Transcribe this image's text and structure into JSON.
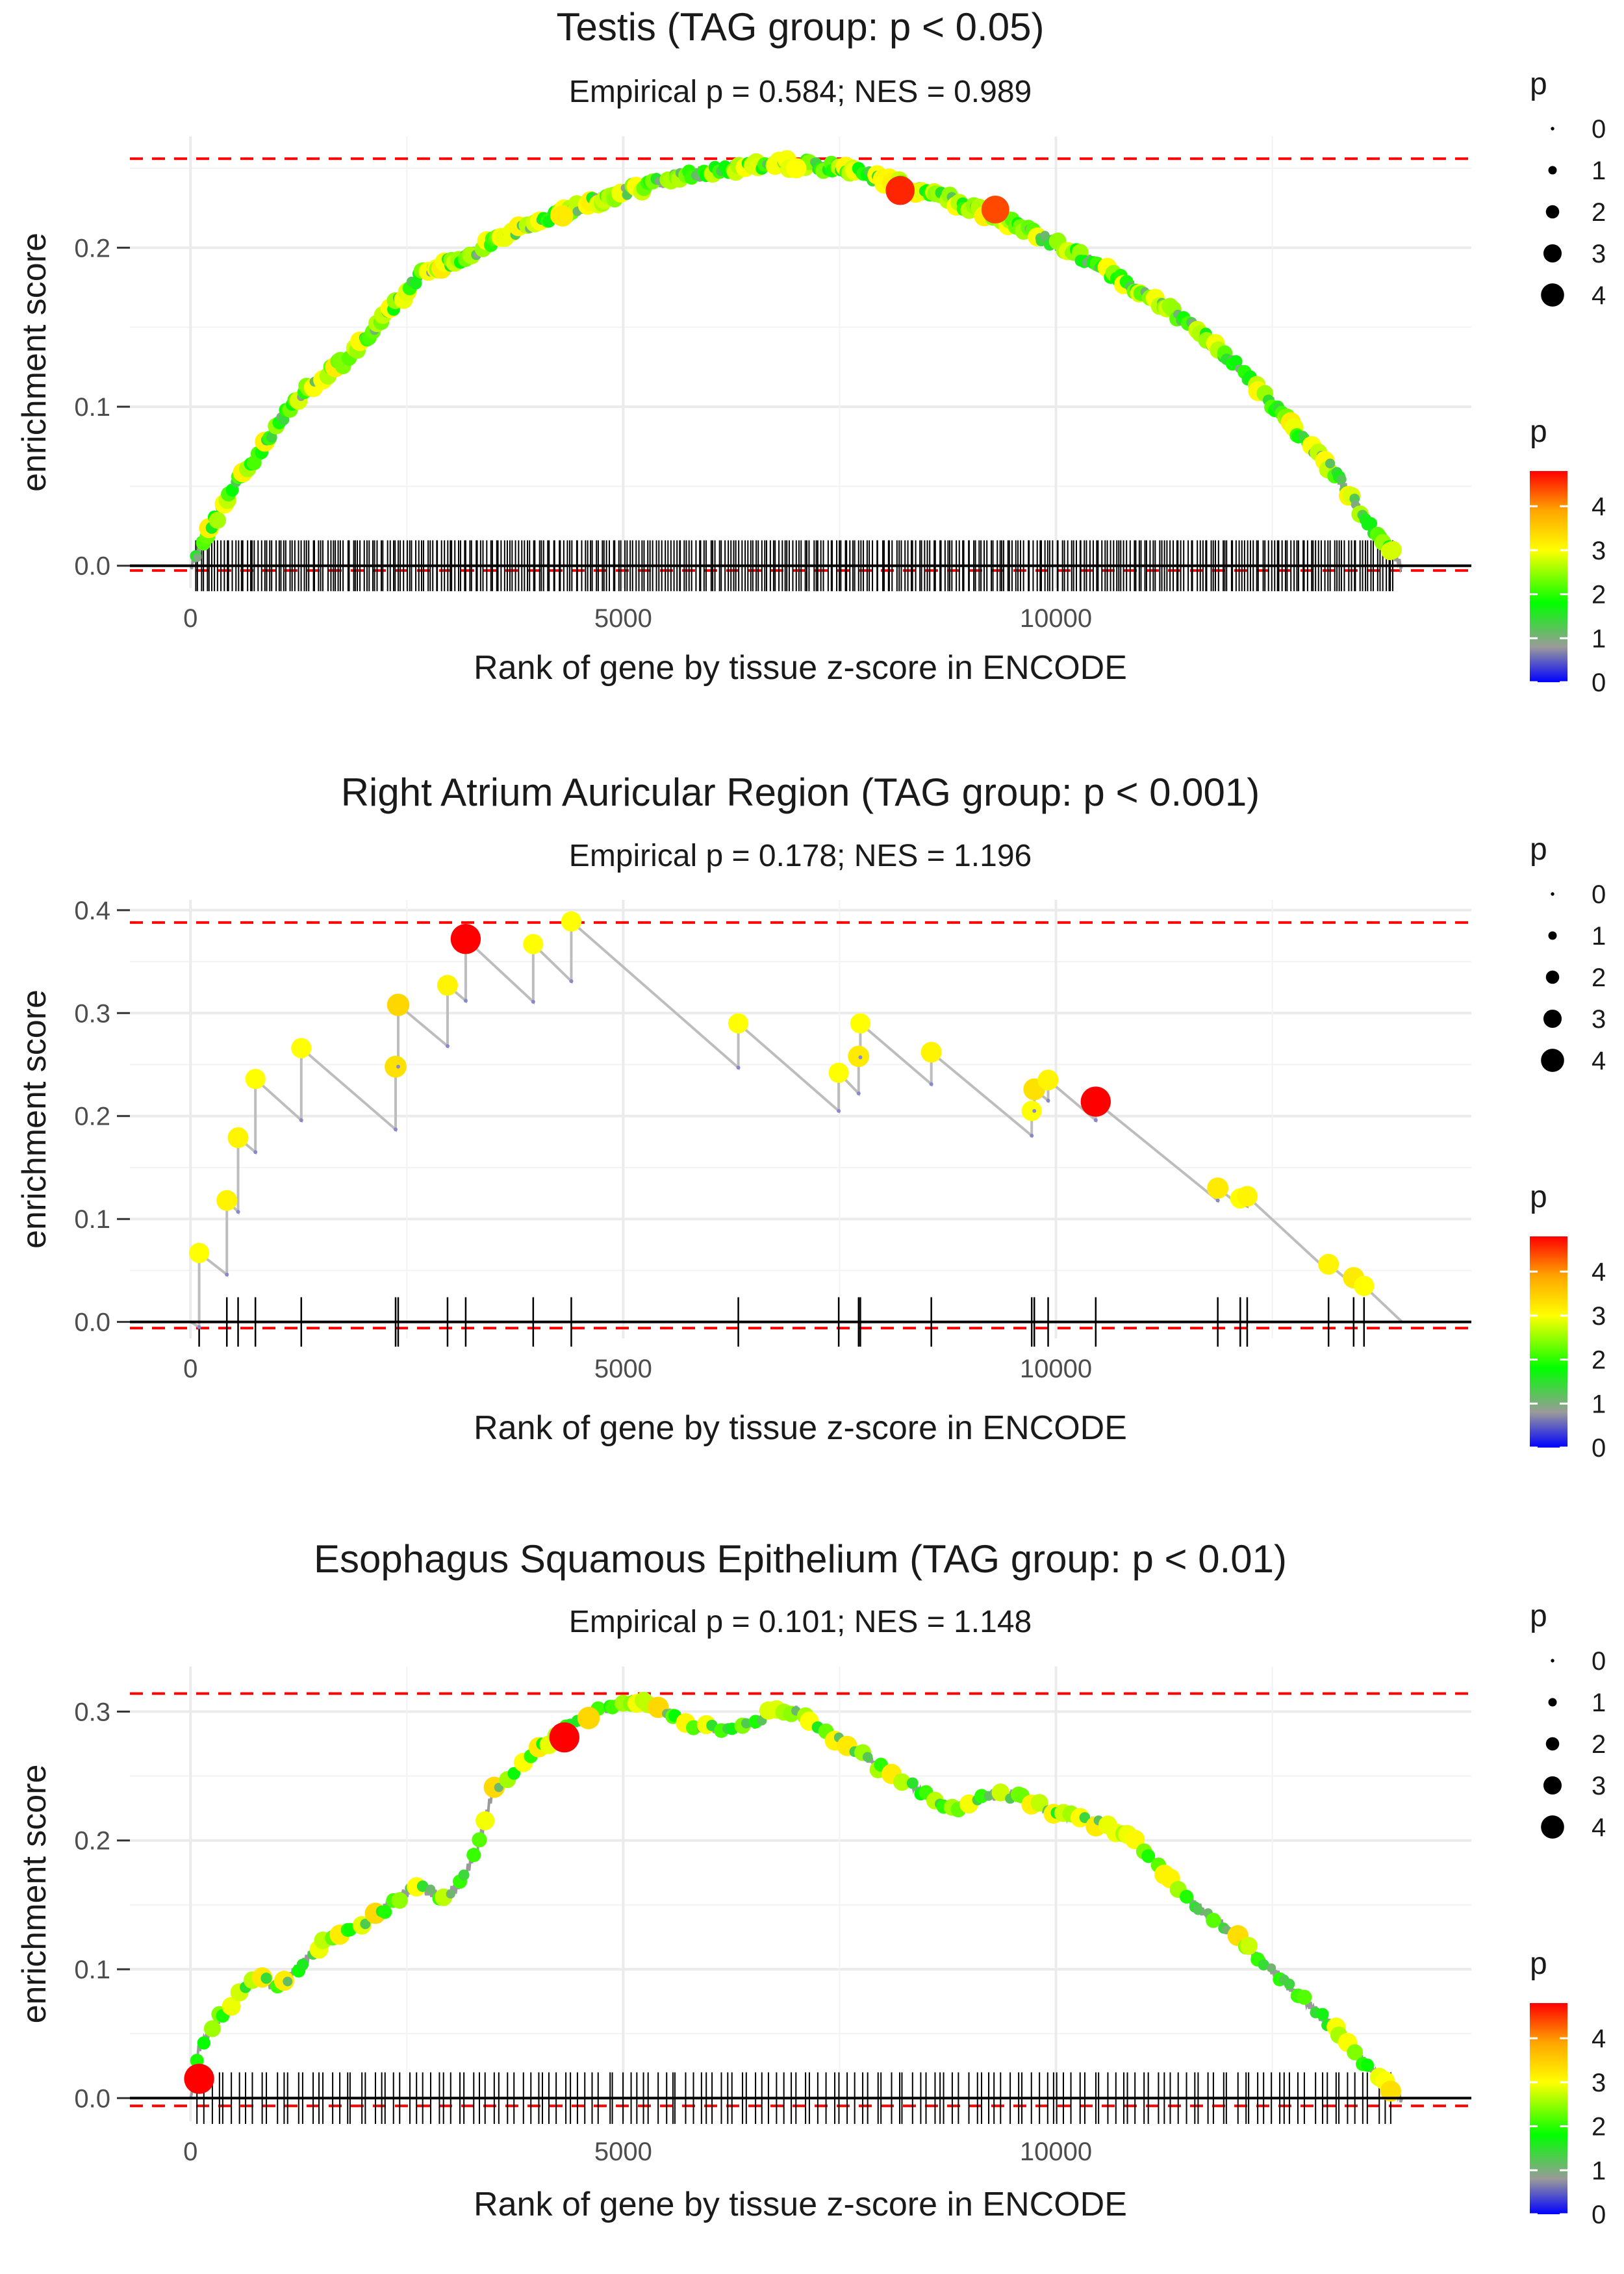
{
  "chart_data": [
    {
      "type": "line",
      "title": "Testis (TAG group: p < 0.05)",
      "subtitle": "Empirical p = 0.584; NES = 0.989",
      "xlabel": "Rank of gene by tissue z-score in ENCODE",
      "ylabel": "enrichment score",
      "xlim": [
        -700,
        14800
      ],
      "ylim": [
        -0.014,
        0.27
      ],
      "x_ticks": [
        0,
        5000,
        10000
      ],
      "x_tick_labels": [
        "0",
        "5000",
        "10000"
      ],
      "y_ticks": [
        0.0,
        0.1,
        0.2
      ],
      "y_tick_labels": [
        "0.0",
        "0.1",
        "0.2"
      ],
      "max_es": 0.256,
      "min_es": -0.003,
      "rug_height": 0.016,
      "size_legend": {
        "title": "p",
        "values": [
          0,
          1,
          2,
          3,
          4
        ],
        "labels": [
          "0",
          "1",
          "2",
          "3",
          "4"
        ]
      },
      "color_legend": {
        "title": "p",
        "ticks": [
          0,
          1,
          2,
          3,
          4
        ],
        "labels": [
          "0",
          "1",
          "2",
          "3",
          "4"
        ],
        "range": [
          0,
          4.8
        ],
        "colors": [
          "#0000ff",
          "#9a9a9a",
          "#00ff00",
          "#ffff00",
          "#ffa500",
          "#ff0000"
        ]
      },
      "curve": {
        "x": [
          0,
          200,
          500,
          900,
          1300,
          1800,
          2300,
          2700,
          3200,
          3700,
          4200,
          4700,
          5200,
          5700,
          6200,
          6700,
          7200,
          7700,
          8200,
          8700,
          9200,
          9700,
          10200,
          10700,
          11200,
          11700,
          12200,
          12700,
          13200,
          13700,
          14000
        ],
        "y": [
          0.0,
          0.02,
          0.05,
          0.08,
          0.11,
          0.13,
          0.16,
          0.185,
          0.195,
          0.21,
          0.22,
          0.23,
          0.238,
          0.245,
          0.25,
          0.253,
          0.252,
          0.248,
          0.24,
          0.232,
          0.222,
          0.21,
          0.197,
          0.182,
          0.165,
          0.145,
          0.12,
          0.09,
          0.06,
          0.02,
          0.0
        ]
      },
      "hits_n": 420,
      "hits_p_avg": 2.0,
      "highlight_points": [
        {
          "x": 8200,
          "y": 0.236,
          "p": 4.6
        },
        {
          "x": 9300,
          "y": 0.224,
          "p": 4.4
        },
        {
          "x": 4300,
          "y": 0.22,
          "p": 3.2
        },
        {
          "x": 7000,
          "y": 0.25,
          "p": 3.0
        }
      ]
    },
    {
      "type": "line",
      "title": "Right Atrium Auricular Region (TAG group: p < 0.001)",
      "subtitle": "Empirical p = 0.178; NES = 1.196",
      "xlabel": "Rank of gene by tissue z-score in ENCODE",
      "ylabel": "enrichment score",
      "xlim": [
        -700,
        14800
      ],
      "ylim": [
        -0.016,
        0.41
      ],
      "x_ticks": [
        0,
        5000,
        10000
      ],
      "x_tick_labels": [
        "0",
        "5000",
        "10000"
      ],
      "y_ticks": [
        0.0,
        0.1,
        0.2,
        0.3,
        0.4
      ],
      "y_tick_labels": [
        "0.0",
        "0.1",
        "0.2",
        "0.3",
        "0.4"
      ],
      "max_es": 0.388,
      "min_es": -0.006,
      "rug_height": 0.024,
      "size_legend": {
        "title": "p",
        "values": [
          0,
          1,
          2,
          3,
          4
        ],
        "labels": [
          "0",
          "1",
          "2",
          "3",
          "4"
        ]
      },
      "color_legend": {
        "title": "p",
        "ticks": [
          0,
          1,
          2,
          3,
          4
        ],
        "labels": [
          "0",
          "1",
          "2",
          "3",
          "4"
        ],
        "range": [
          0,
          4.8
        ],
        "colors": [
          "#0000ff",
          "#9a9a9a",
          "#00ff00",
          "#ffff00",
          "#ffa500",
          "#ff0000"
        ]
      },
      "hits": [
        {
          "x": 100,
          "p": 3.0,
          "from": -0.005,
          "to": 0.067
        },
        {
          "x": 420,
          "p": 3.1,
          "from": 0.046,
          "to": 0.118
        },
        {
          "x": 550,
          "p": 3.1,
          "from": 0.107,
          "to": 0.179
        },
        {
          "x": 750,
          "p": 3.0,
          "from": 0.165,
          "to": 0.236
        },
        {
          "x": 1280,
          "p": 3.0,
          "from": 0.196,
          "to": 0.266
        },
        {
          "x": 2370,
          "p": 3.3,
          "from": 0.187,
          "to": 0.248
        },
        {
          "x": 2400,
          "p": 3.4,
          "from": 0.248,
          "to": 0.308
        },
        {
          "x": 2970,
          "p": 3.1,
          "from": 0.268,
          "to": 0.327
        },
        {
          "x": 3180,
          "p": 4.8,
          "from": 0.312,
          "to": 0.372
        },
        {
          "x": 3960,
          "p": 3.0,
          "from": 0.311,
          "to": 0.367
        },
        {
          "x": 4400,
          "p": 3.0,
          "from": 0.331,
          "to": 0.389
        },
        {
          "x": 6330,
          "p": 3.0,
          "from": 0.247,
          "to": 0.29
        },
        {
          "x": 7490,
          "p": 3.0,
          "from": 0.205,
          "to": 0.242
        },
        {
          "x": 7720,
          "p": 3.2,
          "from": 0.222,
          "to": 0.258
        },
        {
          "x": 7740,
          "p": 3.0,
          "from": 0.257,
          "to": 0.29
        },
        {
          "x": 8560,
          "p": 3.1,
          "from": 0.231,
          "to": 0.262
        },
        {
          "x": 9720,
          "p": 3.0,
          "from": 0.181,
          "to": 0.205
        },
        {
          "x": 9750,
          "p": 3.3,
          "from": 0.205,
          "to": 0.226
        },
        {
          "x": 9910,
          "p": 3.1,
          "from": 0.215,
          "to": 0.235
        },
        {
          "x": 10460,
          "p": 4.8,
          "from": 0.196,
          "to": 0.214
        },
        {
          "x": 11870,
          "p": 3.2,
          "from": 0.118,
          "to": 0.13
        },
        {
          "x": 12130,
          "p": 3.0,
          "from": 0.113,
          "to": 0.12
        },
        {
          "x": 12210,
          "p": 3.1,
          "from": 0.113,
          "to": 0.122
        },
        {
          "x": 13150,
          "p": 3.1,
          "from": 0.049,
          "to": 0.056
        },
        {
          "x": 13440,
          "p": 3.2,
          "from": 0.036,
          "to": 0.043
        },
        {
          "x": 13560,
          "p": 3.0,
          "from": 0.032,
          "to": 0.035
        }
      ],
      "end": {
        "x": 14000,
        "y": 0.0
      }
    },
    {
      "type": "line",
      "title": "Esophagus Squamous Epithelium (TAG group: p < 0.01)",
      "subtitle": "Empirical p = 0.101; NES = 1.148",
      "xlabel": "Rank of gene by tissue z-score in ENCODE",
      "ylabel": "enrichment score",
      "xlim": [
        -700,
        14800
      ],
      "ylim": [
        -0.018,
        0.335
      ],
      "x_ticks": [
        0,
        5000,
        10000
      ],
      "x_tick_labels": [
        "0",
        "5000",
        "10000"
      ],
      "y_ticks": [
        0.0,
        0.1,
        0.2,
        0.3
      ],
      "y_tick_labels": [
        "0.0",
        "0.1",
        "0.2",
        "0.3"
      ],
      "max_es": 0.314,
      "min_es": -0.006,
      "rug_height": 0.02,
      "size_legend": {
        "title": "p",
        "values": [
          0,
          1,
          2,
          3,
          4
        ],
        "labels": [
          "0",
          "1",
          "2",
          "3",
          "4"
        ]
      },
      "color_legend": {
        "title": "p",
        "ticks": [
          0,
          1,
          2,
          3,
          4
        ],
        "labels": [
          "0",
          "1",
          "2",
          "3",
          "4"
        ],
        "range": [
          0,
          4.8
        ],
        "colors": [
          "#0000ff",
          "#9a9a9a",
          "#00ff00",
          "#ffff00",
          "#ffa500",
          "#ff0000"
        ]
      },
      "curve": {
        "x": [
          0,
          100,
          300,
          500,
          800,
          1000,
          1300,
          1600,
          2000,
          2300,
          2600,
          2900,
          3100,
          3300,
          3500,
          3700,
          4000,
          4300,
          4600,
          4900,
          5200,
          5500,
          5800,
          6100,
          6500,
          6700,
          7000,
          7300,
          7600,
          8000,
          8400,
          8800,
          9200,
          9600,
          10000,
          10400,
          10800,
          11200,
          11600,
          12000,
          12400,
          12800,
          13200,
          13600,
          14000
        ],
        "y": [
          0.0,
          0.04,
          0.06,
          0.075,
          0.095,
          0.085,
          0.105,
          0.125,
          0.135,
          0.15,
          0.165,
          0.155,
          0.165,
          0.19,
          0.24,
          0.25,
          0.27,
          0.285,
          0.298,
          0.305,
          0.31,
          0.3,
          0.29,
          0.285,
          0.29,
          0.3,
          0.3,
          0.285,
          0.275,
          0.255,
          0.24,
          0.225,
          0.235,
          0.235,
          0.22,
          0.215,
          0.205,
          0.18,
          0.15,
          0.13,
          0.105,
          0.08,
          0.055,
          0.025,
          0.0
        ]
      },
      "hits_n": 170,
      "hits_p_avg": 2.2,
      "highlight_points": [
        {
          "x": 100,
          "y": 0.015,
          "p": 4.8
        },
        {
          "x": 4320,
          "y": 0.28,
          "p": 4.8
        },
        {
          "x": 4600,
          "y": 0.295,
          "p": 3.4
        }
      ]
    }
  ]
}
